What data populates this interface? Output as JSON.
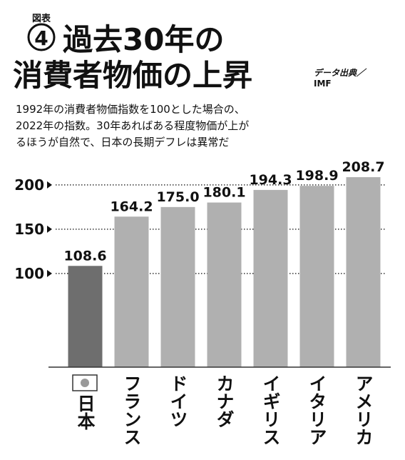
{
  "chart_data": {
    "type": "bar",
    "figure_label": "図表",
    "figure_number": "4",
    "title_lines": [
      "過去30年の",
      "消費者物価の上昇"
    ],
    "source_lines": [
      "データ出典／",
      "IMF"
    ],
    "subtitle_lines": [
      "1992年の消費者物価指数を100とした場合の、",
      "2022年の指数。30年あればある程度物価が上が",
      "るほうが自然で、日本の長期デフレは異常だ"
    ],
    "categories": [
      "日本",
      "フランス",
      "ドイツ",
      "カナダ",
      "イギリス",
      "イタリア",
      "アメリカ"
    ],
    "values": [
      108.6,
      164.2,
      175.0,
      180.1,
      194.3,
      198.9,
      208.7
    ],
    "value_labels": [
      "108.6",
      "164.2",
      "175.0",
      "180.1",
      "194.3",
      "198.9",
      "208.7"
    ],
    "colors": [
      "#6e6e6e",
      "#b0b0b0",
      "#b0b0b0",
      "#b0b0b0",
      "#b0b0b0",
      "#b0b0b0",
      "#b0b0b0"
    ],
    "ylim": [
      -5.6,
      220
    ],
    "yticks": [
      100,
      150,
      200
    ],
    "grid": true
  }
}
